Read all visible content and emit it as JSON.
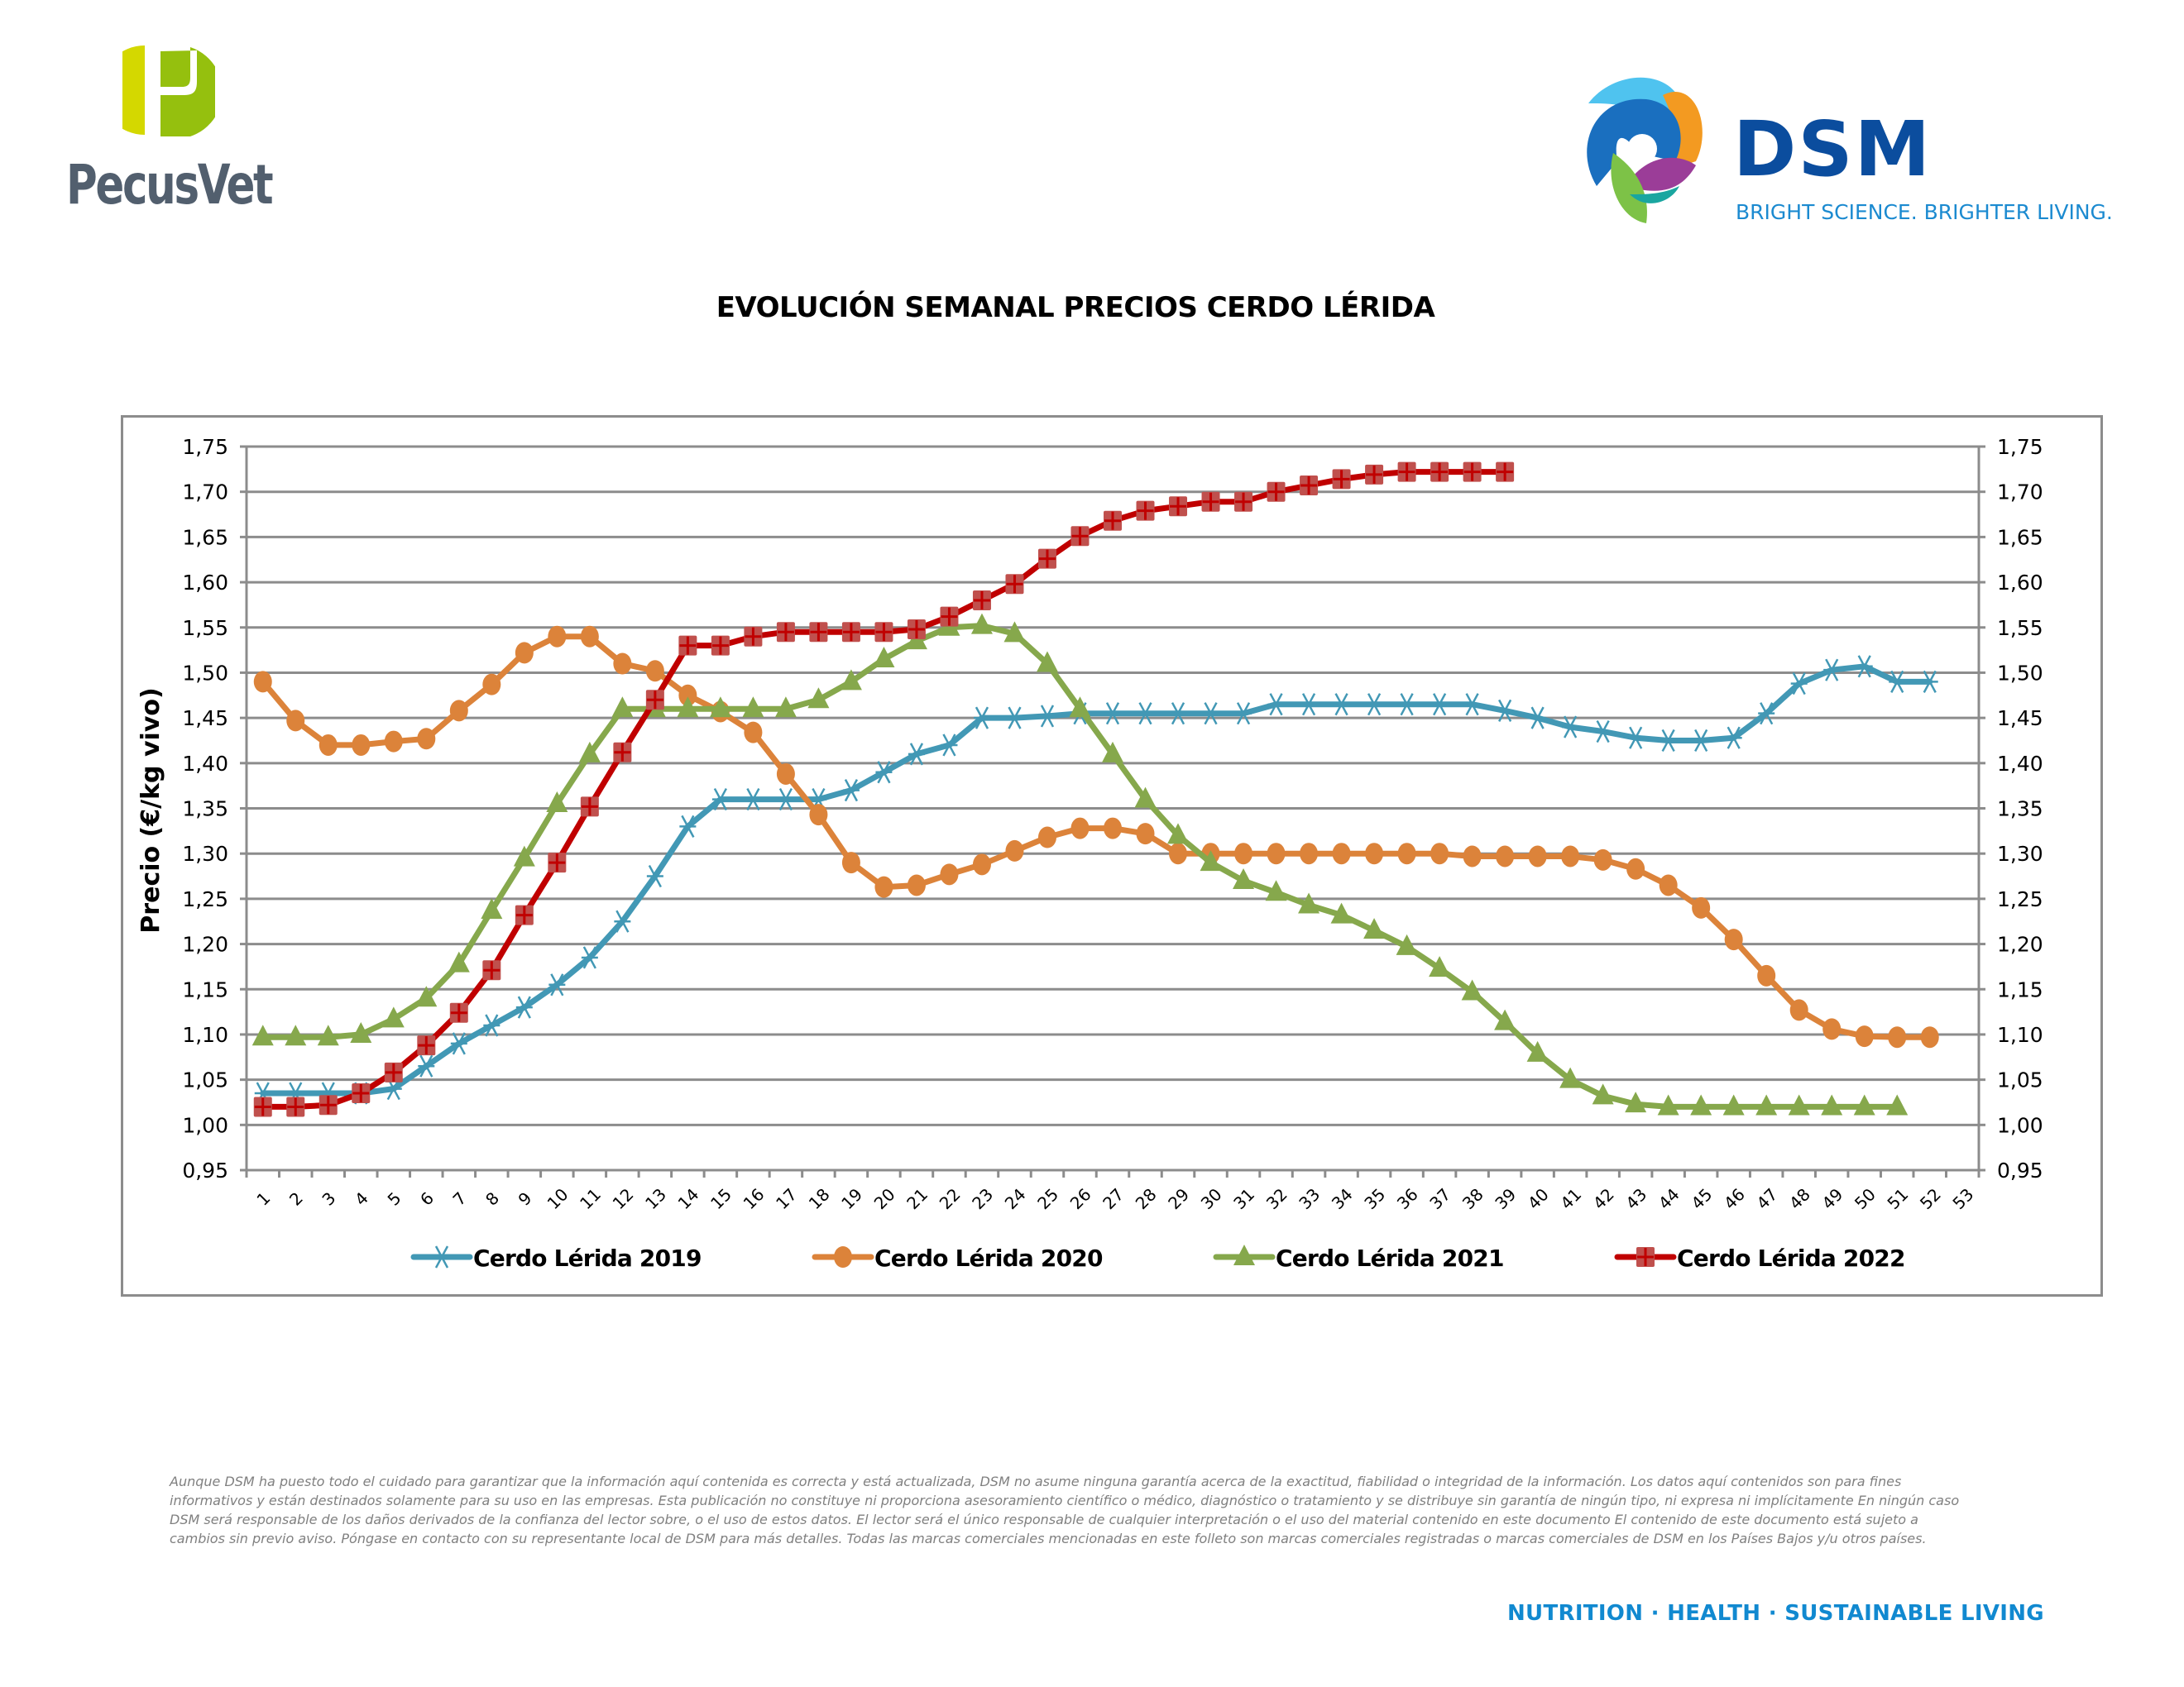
{
  "header": {
    "left_logo": {
      "name": "PecusVet",
      "colors": {
        "mark_left": "#d4d800",
        "mark_right": "#95c00e",
        "text": "#525f6e"
      }
    },
    "right_logo": {
      "name": "DSM",
      "tagline": "BRIGHT SCIENCE. BRIGHTER LIVING.",
      "colors": {
        "name": "#0b4d9e",
        "tagline": "#1b8ad0"
      }
    }
  },
  "footer": {
    "disclaimer": "Aunque DSM ha puesto todo el cuidado para garantizar que la información aquí contenida es correcta y está actualizada, DSM no asume ninguna garantía acerca de la exactitud, fiabilidad o integridad de la información. Los datos aquí contenidos son para fines informativos y están destinados solamente para su uso en las empresas. Esta publicación no constituye ni proporciona asesoramiento científico o médico, diagnóstico o tratamiento y se distribuye sin garantía de ningún tipo, ni expresa ni implícitamente En ningún caso DSM será responsable de los daños derivados de la confianza del lector sobre, o el uso de estos datos. El lector será el único responsable de cualquier interpretación o el uso del material contenido en este documento El contenido de este documento está sujeto a cambios sin previo aviso. Póngase en contacto con su representante local de DSM para más detalles. Todas las marcas comerciales mencionadas en este folleto son marcas comerciales registradas o marcas comerciales de DSM en los Países Bajos y/u otros países.",
    "tagline": "NUTRITION  ·  HEALTH  ·  SUSTAINABLE LIVING"
  },
  "chart_data": {
    "type": "line",
    "title": "EVOLUCIÓN SEMANAL PRECIOS CERDO LÉRIDA",
    "xlabel": "",
    "ylabel": "Precio (€/kg vivo)",
    "ylim": [
      0.95,
      1.75
    ],
    "ytick_step": 0.05,
    "ytick_labels": [
      "0,95",
      "1,00",
      "1,05",
      "1,10",
      "1,15",
      "1,20",
      "1,25",
      "1,30",
      "1,35",
      "1,40",
      "1,45",
      "1,50",
      "1,55",
      "1,60",
      "1,65",
      "1,70",
      "1,75"
    ],
    "secondary_y_axis": true,
    "categories": [
      "1",
      "2",
      "3",
      "4",
      "5",
      "6",
      "7",
      "8",
      "9",
      "10",
      "11",
      "12",
      "13",
      "14",
      "15",
      "16",
      "17",
      "18",
      "19",
      "20",
      "21",
      "22",
      "23",
      "24",
      "25",
      "26",
      "27",
      "28",
      "29",
      "30",
      "31",
      "32",
      "33",
      "34",
      "35",
      "36",
      "37",
      "38",
      "39",
      "40",
      "41",
      "42",
      "43",
      "44",
      "45",
      "46",
      "47",
      "48",
      "49",
      "50",
      "51",
      "52",
      "53"
    ],
    "grid": "horizontal",
    "legend_position": "bottom",
    "series": [
      {
        "name": "Cerdo Lérida 2019",
        "color": "#4298b5",
        "marker": "asterisk",
        "values": [
          1.035,
          1.035,
          1.035,
          1.035,
          1.04,
          1.065,
          1.09,
          1.11,
          1.13,
          1.155,
          1.185,
          1.225,
          1.275,
          1.33,
          1.36,
          1.36,
          1.36,
          1.36,
          1.37,
          1.39,
          1.41,
          1.42,
          1.45,
          1.45,
          1.452,
          1.455,
          1.455,
          1.455,
          1.455,
          1.455,
          1.455,
          1.465,
          1.465,
          1.465,
          1.465,
          1.465,
          1.465,
          1.465,
          1.458,
          1.45,
          1.44,
          1.435,
          1.428,
          1.425,
          1.425,
          1.428,
          1.455,
          1.488,
          1.503,
          1.507,
          1.49,
          1.49
        ]
      },
      {
        "name": "Cerdo Lérida 2020",
        "color": "#dc833a",
        "marker": "circle",
        "values": [
          1.49,
          1.447,
          1.42,
          1.42,
          1.424,
          1.427,
          1.458,
          1.487,
          1.522,
          1.54,
          1.54,
          1.51,
          1.502,
          1.475,
          1.457,
          1.434,
          1.388,
          1.343,
          1.29,
          1.263,
          1.265,
          1.277,
          1.288,
          1.303,
          1.318,
          1.328,
          1.328,
          1.322,
          1.3,
          1.3,
          1.3,
          1.3,
          1.3,
          1.3,
          1.3,
          1.3,
          1.3,
          1.297,
          1.297,
          1.297,
          1.297,
          1.293,
          1.283,
          1.265,
          1.24,
          1.205,
          1.165,
          1.127,
          1.106,
          1.098,
          1.097,
          1.097
        ]
      },
      {
        "name": "Cerdo Lérida 2021",
        "color": "#86a84c",
        "marker": "triangle",
        "values": [
          1.097,
          1.097,
          1.097,
          1.1,
          1.117,
          1.14,
          1.178,
          1.237,
          1.295,
          1.355,
          1.41,
          1.46,
          1.46,
          1.46,
          1.46,
          1.46,
          1.46,
          1.47,
          1.49,
          1.515,
          1.535,
          1.55,
          1.552,
          1.543,
          1.51,
          1.46,
          1.41,
          1.36,
          1.32,
          1.29,
          1.27,
          1.257,
          1.243,
          1.232,
          1.215,
          1.197,
          1.173,
          1.147,
          1.114,
          1.079,
          1.05,
          1.032,
          1.023,
          1.02,
          1.02,
          1.02,
          1.02,
          1.02,
          1.02,
          1.02,
          1.02
        ]
      },
      {
        "name": "Cerdo Lérida 2022",
        "color": "#c00000",
        "marker_fill": "#c0504d",
        "marker": "square-plus",
        "values": [
          1.02,
          1.02,
          1.022,
          1.035,
          1.058,
          1.088,
          1.124,
          1.171,
          1.232,
          1.29,
          1.352,
          1.412,
          1.47,
          1.53,
          1.53,
          1.54,
          1.545,
          1.545,
          1.545,
          1.545,
          1.548,
          1.562,
          1.58,
          1.598,
          1.626,
          1.651,
          1.668,
          1.679,
          1.684,
          1.689,
          1.689,
          1.7,
          1.707,
          1.714,
          1.719,
          1.722,
          1.722,
          1.722,
          1.722
        ]
      }
    ]
  }
}
